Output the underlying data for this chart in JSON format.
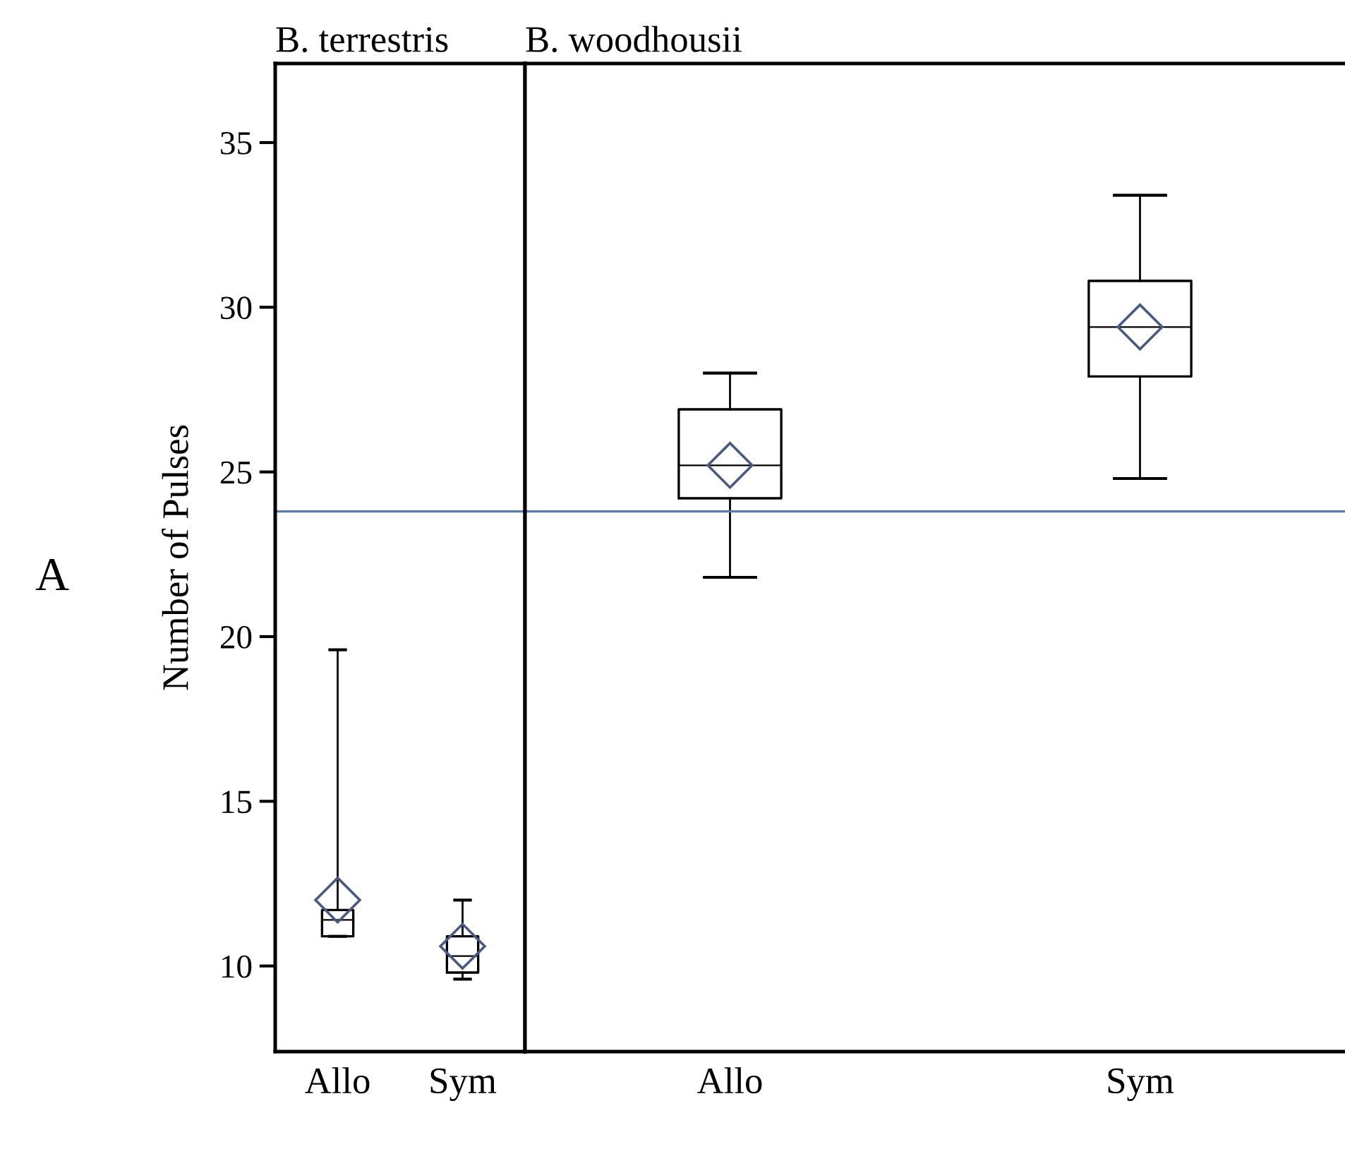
{
  "chart_data": [
    {
      "type": "box",
      "title": "B. terrestris",
      "ylabel": "Number of Pulses",
      "annotations": [
        "A"
      ],
      "categories": [
        "Allo",
        "Sym"
      ],
      "boxes": [
        {
          "low": 10.9,
          "q1": 10.9,
          "median": 11.4,
          "q3": 11.7,
          "high": 19.6,
          "mean": 12.0
        },
        {
          "low": 9.6,
          "q1": 9.8,
          "median": 10.3,
          "q3": 10.9,
          "high": 12.0,
          "mean": 10.6
        }
      ],
      "color": "#000000",
      "ylim": [
        7.4,
        37.4
      ],
      "yticks": [
        10,
        15,
        20,
        25,
        30,
        35
      ],
      "ref_lines": [
        {
          "axis": "y",
          "value": 23.8,
          "color": "#5b7bb0"
        }
      ],
      "grid": false,
      "legend": false
    },
    {
      "type": "box",
      "title": "B. woodhousii",
      "categories": [
        "Allo",
        "Sym"
      ],
      "boxes": [
        {
          "low": 21.8,
          "q1": 24.2,
          "median": 25.2,
          "q3": 26.9,
          "high": 28.0,
          "mean": 25.2
        },
        {
          "low": 24.8,
          "q1": 27.9,
          "median": 29.4,
          "q3": 30.8,
          "high": 33.4,
          "mean": 29.4
        }
      ],
      "color": "#000000",
      "ylim": [
        7.4,
        37.4
      ],
      "tick_labels": "x",
      "ref_lines": [
        {
          "axis": "y",
          "value": 23.8,
          "color": "#5b7bb0"
        }
      ],
      "grid": false,
      "legend": false
    }
  ]
}
